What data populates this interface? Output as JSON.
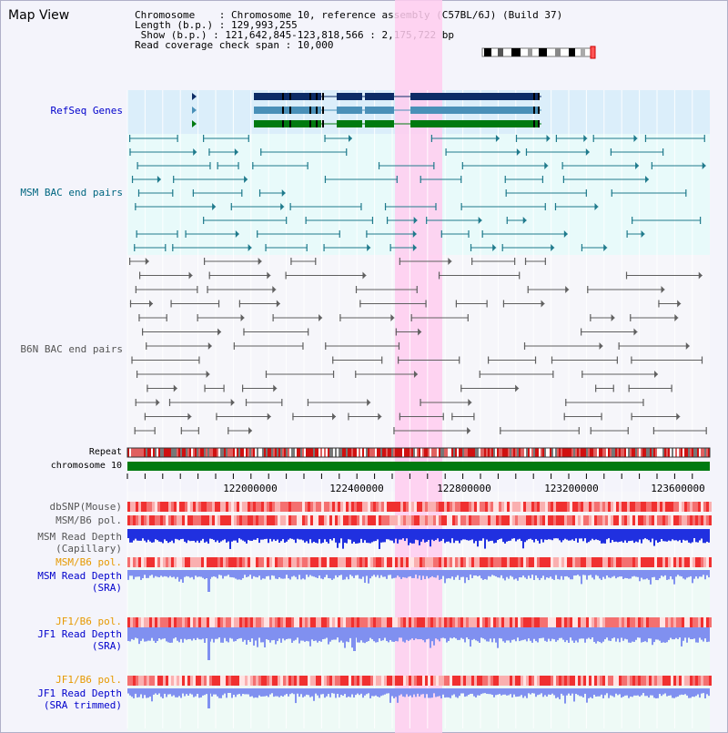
{
  "app": {
    "title": "Map View"
  },
  "info": {
    "chromosome": "Chromosome    : Chromosome 10, reference assembly (C57BL/6J) (Build 37)",
    "length": "Length (b.p.) : 129,993,255",
    "show": " Show (b.p.) : 121,642,845-123,818,566 : 2,175,722 bp",
    "coverage": "Read coverage check span : 10,000"
  },
  "tracks": {
    "refseq": "RefSeq Genes",
    "msm_bac": "MSM BAC end pairs",
    "b6n_bac": "B6N BAC end pairs",
    "repeat": "Repeat",
    "chromosome": "chromosome 10",
    "dbsnp": "dbSNP(Mouse)",
    "msm_b6_pol_1": "MSM/B6 pol.",
    "msm_depth_cap_1": "MSM Read Depth",
    "msm_depth_cap_2": "(Capillary)",
    "msm_b6_pol_2": "MSM/B6 pol.",
    "msm_depth_sra_1": "MSM Read Depth",
    "msm_depth_sra_2": "(SRA)",
    "jf1_b6_pol_1": "JF1/B6 pol.",
    "jf1_depth_sra_1": "JF1 Read Depth",
    "jf1_depth_sra_2": "(SRA)",
    "jf1_b6_pol_2": "JF1/B6 pol.",
    "jf1_depth_trim_1": "JF1 Read Depth",
    "jf1_depth_trim_2": "(SRA trimmed)"
  },
  "axis_ticks": [
    "122000000",
    "122400000",
    "122800000",
    "123200000",
    "123600000"
  ],
  "colors": {
    "label_blue": "#0000cc",
    "label_teal": "#006680",
    "label_gray": "#555555",
    "label_orange": "#e69900",
    "highlight": "#ffccee",
    "gene_dark": "#0c2c66",
    "gene_mid": "#4a90b8",
    "gene_green": "#007a10",
    "msm_pair": "#1f7a8c",
    "b6n_pair": "#606060",
    "depth_blue": "#2030e0",
    "depth_light": "#8090f0"
  }
}
